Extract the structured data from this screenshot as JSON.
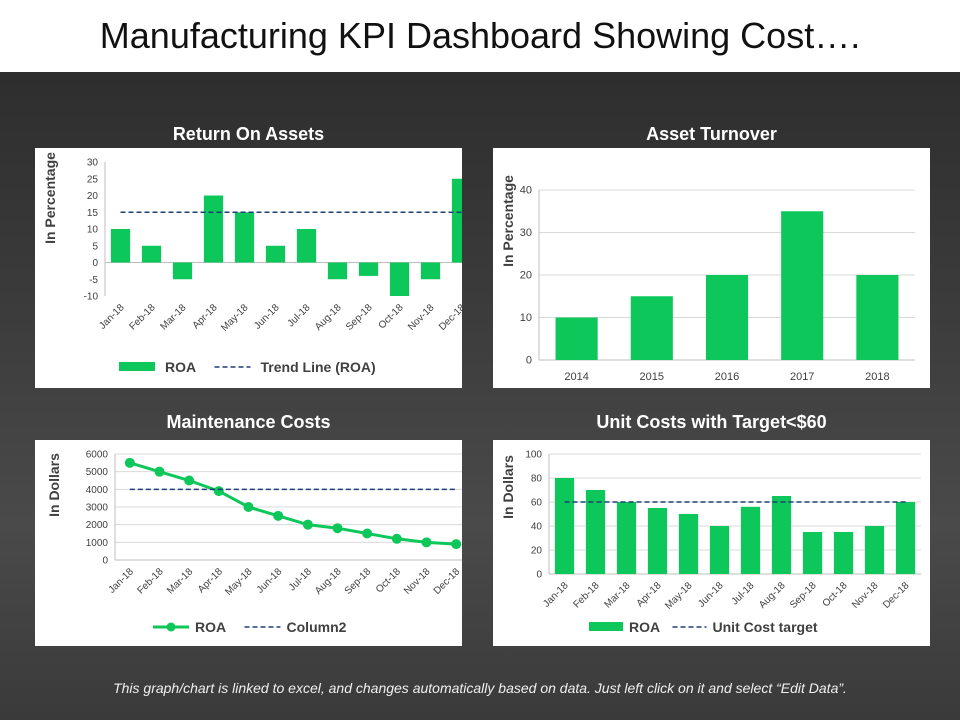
{
  "page": {
    "title": "Manufacturing KPI Dashboard Showing Cost….",
    "footer": "This graph/chart is linked to excel, and changes automatically based on data. Just left click on it and select “Edit Data”."
  },
  "colors": {
    "bar": "#0ec75a",
    "trend": "#1f3c78",
    "background": "#3a3a3a",
    "panel": "#ffffff"
  },
  "chart_data": [
    {
      "id": "roa",
      "type": "bar",
      "title": "Return On Assets",
      "ylabel": "In Percentage",
      "xlabel": "",
      "categories": [
        "Jan-18",
        "Feb-18",
        "Mar-18",
        "Apr-18",
        "May-18",
        "Jun-18",
        "Jul-18",
        "Aug-18",
        "Sep-18",
        "Oct-18",
        "Nov-18",
        "Dec-18"
      ],
      "series": [
        {
          "name": "ROA",
          "type": "bar",
          "values": [
            10,
            5,
            -5,
            20,
            15,
            5,
            10,
            -5,
            -4,
            -10,
            -5,
            25
          ]
        },
        {
          "name": "Trend Line (ROA)",
          "type": "dashed-line",
          "values": [
            15,
            15,
            15,
            15,
            15,
            15,
            15,
            15,
            15,
            15,
            15,
            15
          ]
        }
      ],
      "ylim": [
        -10,
        30
      ],
      "yticks": [
        -10,
        -5,
        0,
        5,
        10,
        15,
        20,
        25,
        30
      ],
      "grid": false,
      "legend": "bottom"
    },
    {
      "id": "turnover",
      "type": "bar",
      "title": "Asset Turnover",
      "ylabel": "In Percentage",
      "xlabel": "",
      "categories": [
        "2014",
        "2015",
        "2016",
        "2017",
        "2018"
      ],
      "series": [
        {
          "type": "bar",
          "values": [
            10,
            15,
            20,
            35,
            20
          ]
        }
      ],
      "ylim": [
        0,
        40
      ],
      "yticks": [
        0,
        10,
        20,
        30,
        40
      ],
      "grid": true,
      "legend": "none"
    },
    {
      "id": "maintenance",
      "type": "line",
      "title": "Maintenance Costs",
      "ylabel": "In Dollars",
      "xlabel": "",
      "categories": [
        "Jan-18",
        "Feb-18",
        "Mar-18",
        "Apr-18",
        "May-18",
        "Jun-18",
        "Jul-18",
        "Aug-18",
        "Sep-18",
        "Oct-18",
        "Nov-18",
        "Dec-18"
      ],
      "series": [
        {
          "name": "ROA",
          "type": "line-marker",
          "values": [
            5500,
            5000,
            4500,
            3900,
            3000,
            2500,
            2000,
            1800,
            1500,
            1200,
            1000,
            900
          ]
        },
        {
          "name": "Column2",
          "type": "dashed-line",
          "values": [
            4000,
            4000,
            4000,
            4000,
            4000,
            4000,
            4000,
            4000,
            4000,
            4000,
            4000,
            4000
          ]
        }
      ],
      "ylim": [
        0,
        6000
      ],
      "yticks": [
        0,
        1000,
        2000,
        3000,
        4000,
        5000,
        6000
      ],
      "grid": true,
      "legend": "bottom"
    },
    {
      "id": "unitcost",
      "type": "bar",
      "title": "Unit Costs with Target<$60",
      "ylabel": "In Dollars",
      "xlabel": "",
      "categories": [
        "Jan-18",
        "Feb-18",
        "Mar-18",
        "Apr-18",
        "May-18",
        "Jun-18",
        "Jul-18",
        "Aug-18",
        "Sep-18",
        "Oct-18",
        "Nov-18",
        "Dec-18"
      ],
      "series": [
        {
          "name": "ROA",
          "type": "bar",
          "values": [
            80,
            70,
            60,
            55,
            50,
            40,
            56,
            65,
            35,
            35,
            40,
            60
          ]
        },
        {
          "name": "Unit Cost target",
          "type": "dashed-line",
          "values": [
            60,
            60,
            60,
            60,
            60,
            60,
            60,
            60,
            60,
            60,
            60,
            60
          ]
        }
      ],
      "ylim": [
        0,
        100
      ],
      "yticks": [
        0,
        20,
        40,
        60,
        80,
        100
      ],
      "grid": true,
      "legend": "bottom"
    }
  ]
}
